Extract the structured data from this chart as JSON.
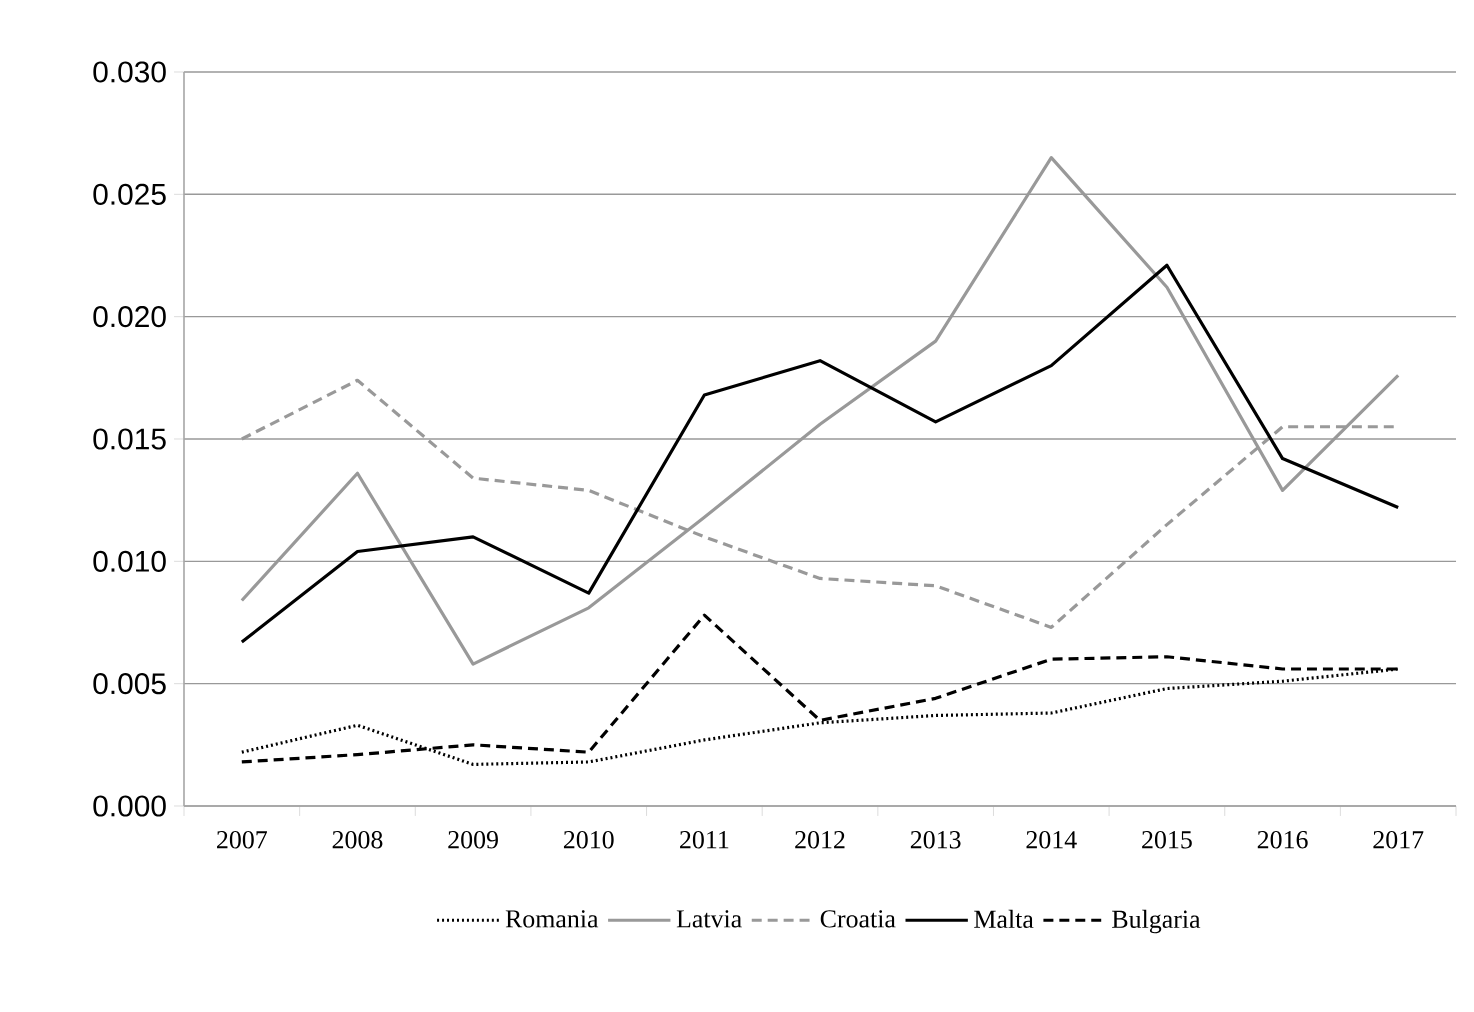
{
  "chart_data": {
    "type": "line",
    "categories": [
      "2007",
      "2008",
      "2009",
      "2010",
      "2011",
      "2012",
      "2013",
      "2014",
      "2015",
      "2016",
      "2017"
    ],
    "series": [
      {
        "name": "Romania",
        "color": "#000000",
        "line_style": "dotted",
        "values": [
          0.0022,
          0.0033,
          0.0017,
          0.0018,
          0.0027,
          0.0034,
          0.0037,
          0.0038,
          0.0048,
          0.0051,
          0.0056
        ]
      },
      {
        "name": "Latvia",
        "color": "#999999",
        "line_style": "solid",
        "values": [
          0.0084,
          0.0136,
          0.0058,
          0.0081,
          0.0118,
          0.0156,
          0.019,
          0.0265,
          0.0212,
          0.0129,
          0.0176
        ]
      },
      {
        "name": "Croatia",
        "color": "#999999",
        "line_style": "dashed",
        "values": [
          0.015,
          0.0174,
          0.0134,
          0.0129,
          0.011,
          0.0093,
          0.009,
          0.0073,
          0.0115,
          0.0155,
          0.0155
        ]
      },
      {
        "name": "Malta",
        "color": "#000000",
        "line_style": "solid",
        "values": [
          0.0067,
          0.0104,
          0.011,
          0.0087,
          0.0168,
          0.0182,
          0.0157,
          0.018,
          0.0221,
          0.0142,
          0.0122
        ]
      },
      {
        "name": "Bulgaria",
        "color": "#000000",
        "line_style": "dashed",
        "values": [
          0.0018,
          0.0021,
          0.0025,
          0.0022,
          0.0078,
          0.0035,
          0.0044,
          0.006,
          0.0061,
          0.0056,
          0.0056
        ]
      }
    ],
    "ylim": [
      0,
      0.03
    ],
    "yticks": [
      {
        "value": 0,
        "label": "0.000"
      },
      {
        "value": 0.005,
        "label": "0.005"
      },
      {
        "value": 0.01,
        "label": "0.010"
      },
      {
        "value": 0.015,
        "label": "0.015"
      },
      {
        "value": 0.02,
        "label": "0.020"
      },
      {
        "value": 0.025,
        "label": "0.025"
      },
      {
        "value": 0.03,
        "label": "0.030"
      }
    ],
    "grid": "y",
    "legend": "bottom",
    "marker": "none"
  }
}
